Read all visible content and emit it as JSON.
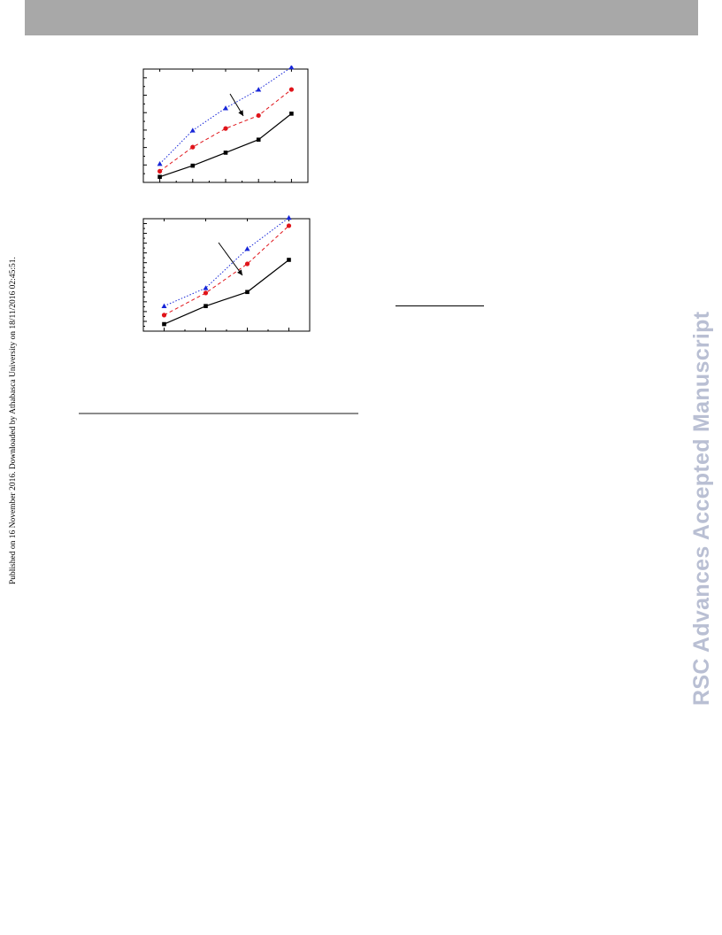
{
  "header": {
    "bar_color": "#a8a8a8"
  },
  "side_note": {
    "text": "Published on 16 November 2016. Downloaded by Athabasca University on 18/11/2016 02:45:51."
  },
  "watermark": {
    "text": "RSC Advances Accepted Manuscript",
    "color": "#b9bfd3"
  },
  "series_colors": {
    "squares": "#000000",
    "circles": "#e0141a",
    "triangles": "#1726d8"
  },
  "chart_data": [
    {
      "type": "line",
      "x": [
        1,
        2,
        3,
        4,
        5
      ],
      "xlim": [
        0.5,
        5.5
      ],
      "ylim": [
        0,
        6.1
      ],
      "grid": false,
      "arrow": true,
      "series": [
        {
          "marker": "square",
          "line": "solid",
          "values": [
            0.3,
            0.9,
            1.6,
            2.3,
            3.7
          ]
        },
        {
          "marker": "circle",
          "line": "dashed",
          "values": [
            0.6,
            1.9,
            2.9,
            3.6,
            5.0
          ]
        },
        {
          "marker": "triangle",
          "line": "dotted",
          "values": [
            1.0,
            2.8,
            4.0,
            5.0,
            6.2
          ]
        }
      ]
    },
    {
      "type": "line",
      "x": [
        1,
        2,
        3,
        4
      ],
      "xlim": [
        0.5,
        4.5
      ],
      "ylim": [
        0,
        11.2
      ],
      "grid": false,
      "arrow": true,
      "series": [
        {
          "marker": "square",
          "line": "solid",
          "values": [
            0.7,
            2.5,
            3.9,
            7.1
          ]
        },
        {
          "marker": "circle",
          "line": "dashed",
          "values": [
            1.6,
            3.8,
            6.7,
            10.5
          ]
        },
        {
          "marker": "triangle",
          "line": "dotted",
          "values": [
            2.5,
            4.3,
            8.2,
            11.3
          ]
        }
      ]
    }
  ]
}
